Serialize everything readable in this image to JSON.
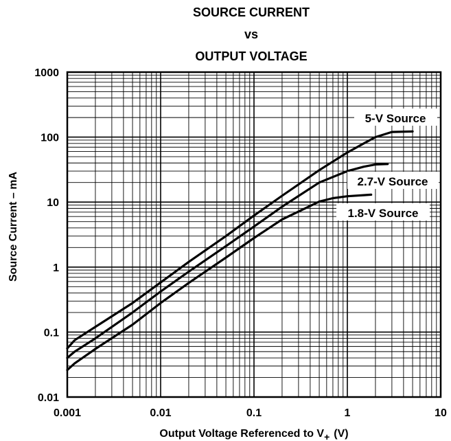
{
  "chart_data": {
    "type": "line",
    "title": [
      "SOURCE CURRENT",
      "vs",
      "OUTPUT VOLTAGE"
    ],
    "xlabel": "Output Voltage Referenced to V",
    "xlabel_subscript": "+",
    "xlabel_unit": "(V)",
    "ylabel": "Source Current – mA",
    "x_scale": "log",
    "y_scale": "log",
    "xlim": [
      0.001,
      10
    ],
    "ylim": [
      0.01,
      1000
    ],
    "x_ticks": [
      {
        "value": 0.001,
        "label": "0.001"
      },
      {
        "value": 0.01,
        "label": "0.01"
      },
      {
        "value": 0.1,
        "label": "0.1"
      },
      {
        "value": 1,
        "label": "1"
      },
      {
        "value": 10,
        "label": "10"
      }
    ],
    "y_ticks": [
      {
        "value": 0.01,
        "label": "0.01"
      },
      {
        "value": 0.1,
        "label": "0.1"
      },
      {
        "value": 1,
        "label": "1"
      },
      {
        "value": 10,
        "label": "10"
      },
      {
        "value": 100,
        "label": "100"
      },
      {
        "value": 1000,
        "label": "1000"
      }
    ],
    "grid": true,
    "series": [
      {
        "name": "5-V Source",
        "x": [
          0.001,
          0.0012,
          0.002,
          0.005,
          0.01,
          0.02,
          0.05,
          0.1,
          0.2,
          0.5,
          1,
          1.5,
          2,
          3,
          5
        ],
        "y": [
          0.056,
          0.075,
          0.12,
          0.28,
          0.58,
          1.2,
          3.0,
          6.2,
          12.5,
          31,
          58,
          80,
          100,
          120,
          122
        ]
      },
      {
        "name": "2.7-V Source",
        "x": [
          0.001,
          0.0012,
          0.002,
          0.005,
          0.01,
          0.02,
          0.05,
          0.1,
          0.2,
          0.5,
          1,
          1.5,
          2,
          2.7
        ],
        "y": [
          0.04,
          0.05,
          0.08,
          0.2,
          0.42,
          0.85,
          2.1,
          4.2,
          8.5,
          20,
          30,
          35,
          38,
          38.5
        ]
      },
      {
        "name": "1.8-V Source",
        "x": [
          0.001,
          0.0012,
          0.002,
          0.005,
          0.01,
          0.02,
          0.05,
          0.1,
          0.2,
          0.5,
          0.7,
          1,
          1.5,
          1.8
        ],
        "y": [
          0.026,
          0.033,
          0.055,
          0.13,
          0.28,
          0.57,
          1.4,
          2.8,
          5.4,
          10.2,
          11.5,
          12.3,
          12.8,
          13
        ]
      }
    ]
  },
  "colors": {
    "background": "#ffffff",
    "ink": "#000000",
    "grid": "#000000"
  }
}
